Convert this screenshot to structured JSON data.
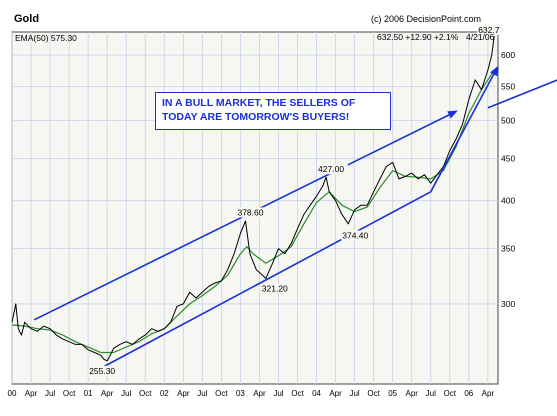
{
  "chart_data": {
    "type": "line",
    "title": "Gold",
    "source": "(c) 2006 DecisionPoint.com",
    "indicator_label": "EMA(50) 575.30",
    "quote_line": "632.50 +12.90 +2.1%",
    "quote_date": "4/21/06",
    "yscale": "log",
    "ylim": [
      240,
      640
    ],
    "y_ticks": [
      300,
      350,
      400,
      450,
      500,
      550,
      600
    ],
    "x_range": [
      0,
      76.6
    ],
    "x_ticks": [
      {
        "label": "00",
        "pos": 0
      },
      {
        "label": "Apr",
        "pos": 3
      },
      {
        "label": "Jul",
        "pos": 6
      },
      {
        "label": "Oct",
        "pos": 9
      },
      {
        "label": "01",
        "pos": 12
      },
      {
        "label": "Apr",
        "pos": 15
      },
      {
        "label": "Jul",
        "pos": 18
      },
      {
        "label": "Oct",
        "pos": 21
      },
      {
        "label": "02",
        "pos": 24
      },
      {
        "label": "Apr",
        "pos": 27
      },
      {
        "label": "Jul",
        "pos": 30
      },
      {
        "label": "Oct",
        "pos": 33
      },
      {
        "label": "03",
        "pos": 36
      },
      {
        "label": "Apr",
        "pos": 39
      },
      {
        "label": "Jul",
        "pos": 42
      },
      {
        "label": "Oct",
        "pos": 45
      },
      {
        "label": "04",
        "pos": 48
      },
      {
        "label": "Apr",
        "pos": 51
      },
      {
        "label": "Jul",
        "pos": 54
      },
      {
        "label": "Oct",
        "pos": 57
      },
      {
        "label": "05",
        "pos": 60
      },
      {
        "label": "Apr",
        "pos": 63
      },
      {
        "label": "Jul",
        "pos": 66
      },
      {
        "label": "Oct",
        "pos": 69
      },
      {
        "label": "06",
        "pos": 72
      },
      {
        "label": "Apr",
        "pos": 75
      }
    ],
    "price_series": [
      [
        0,
        285
      ],
      [
        0.6,
        300
      ],
      [
        1,
        280
      ],
      [
        1.5,
        275
      ],
      [
        2,
        285
      ],
      [
        3,
        280
      ],
      [
        4,
        278
      ],
      [
        5,
        282
      ],
      [
        6,
        280
      ],
      [
        7,
        275
      ],
      [
        8,
        272
      ],
      [
        9,
        270
      ],
      [
        10,
        268
      ],
      [
        11,
        268
      ],
      [
        12,
        264
      ],
      [
        13,
        262
      ],
      [
        14,
        260
      ],
      [
        14.5,
        257
      ],
      [
        15,
        256
      ],
      [
        15.5,
        260
      ],
      [
        16,
        265
      ],
      [
        17,
        268
      ],
      [
        18,
        270
      ],
      [
        19,
        268
      ],
      [
        20,
        272
      ],
      [
        21,
        275
      ],
      [
        22,
        280
      ],
      [
        23,
        278
      ],
      [
        24,
        280
      ],
      [
        25,
        285
      ],
      [
        26,
        298
      ],
      [
        27,
        300
      ],
      [
        28,
        310
      ],
      [
        29,
        305
      ],
      [
        30,
        310
      ],
      [
        31,
        315
      ],
      [
        32,
        318
      ],
      [
        33,
        320
      ],
      [
        34,
        330
      ],
      [
        35,
        345
      ],
      [
        36,
        365
      ],
      [
        36.8,
        378
      ],
      [
        37.5,
        345
      ],
      [
        38.5,
        330
      ],
      [
        39.5,
        325
      ],
      [
        40,
        322
      ],
      [
        41,
        335
      ],
      [
        42,
        350
      ],
      [
        43,
        345
      ],
      [
        44,
        355
      ],
      [
        45,
        370
      ],
      [
        46,
        385
      ],
      [
        47,
        395
      ],
      [
        48,
        405
      ],
      [
        49,
        417
      ],
      [
        49.5,
        427
      ],
      [
        50,
        410
      ],
      [
        51,
        400
      ],
      [
        52,
        385
      ],
      [
        53,
        375
      ],
      [
        54,
        390
      ],
      [
        55,
        395
      ],
      [
        56,
        395
      ],
      [
        57,
        410
      ],
      [
        58,
        425
      ],
      [
        59,
        440
      ],
      [
        60,
        445
      ],
      [
        61,
        425
      ],
      [
        62,
        428
      ],
      [
        63,
        432
      ],
      [
        64,
        425
      ],
      [
        65,
        430
      ],
      [
        66,
        420
      ],
      [
        67,
        430
      ],
      [
        68,
        440
      ],
      [
        69,
        460
      ],
      [
        70,
        475
      ],
      [
        71,
        495
      ],
      [
        72,
        530
      ],
      [
        73,
        560
      ],
      [
        74,
        545
      ],
      [
        75,
        575
      ],
      [
        75.6,
        600
      ],
      [
        76,
        632.5
      ]
    ],
    "ema_series": [
      [
        0,
        283
      ],
      [
        2,
        282
      ],
      [
        4,
        280
      ],
      [
        6,
        279
      ],
      [
        8,
        275
      ],
      [
        10,
        270
      ],
      [
        12,
        266
      ],
      [
        14,
        262
      ],
      [
        16,
        262
      ],
      [
        18,
        266
      ],
      [
        20,
        270
      ],
      [
        22,
        276
      ],
      [
        24,
        280
      ],
      [
        26,
        290
      ],
      [
        28,
        300
      ],
      [
        30,
        307
      ],
      [
        32,
        315
      ],
      [
        34,
        325
      ],
      [
        36,
        345
      ],
      [
        37,
        352
      ],
      [
        38,
        345
      ],
      [
        40,
        336
      ],
      [
        42,
        343
      ],
      [
        44,
        352
      ],
      [
        46,
        375
      ],
      [
        48,
        398
      ],
      [
        50,
        410
      ],
      [
        52,
        395
      ],
      [
        54,
        388
      ],
      [
        56,
        393
      ],
      [
        58,
        415
      ],
      [
        60,
        435
      ],
      [
        62,
        428
      ],
      [
        64,
        427
      ],
      [
        66,
        425
      ],
      [
        68,
        435
      ],
      [
        70,
        465
      ],
      [
        72,
        510
      ],
      [
        74,
        545
      ],
      [
        76,
        575.3
      ]
    ],
    "annotations": [
      {
        "text": "255.30",
        "x": 15,
        "y": 255.3
      },
      {
        "text": "378.60",
        "x": 36.8,
        "y": 378.6
      },
      {
        "text": "321.20",
        "x": 40,
        "y": 321.2
      },
      {
        "text": "427.00",
        "x": 49.5,
        "y": 427
      },
      {
        "text": "374.40",
        "x": 53,
        "y": 374.4
      },
      {
        "text": "632.7",
        "x": 76,
        "y": 632.7
      }
    ],
    "trend_lines": {
      "channel_upper": [
        [
          3.5,
          287
        ],
        [
          70,
          513
        ]
      ],
      "channel_lower": [
        [
          14.5,
          252
        ],
        [
          66,
          410
        ]
      ],
      "breakout": [
        [
          66,
          410
        ],
        [
          76.5,
          580
        ]
      ],
      "projection": [
        [
          75,
          518
        ],
        [
          98,
          610
        ]
      ]
    },
    "callout_lines": [
      "IN A BULL MARKET, THE SELLERS OF",
      "TODAY ARE TOMORROW'S BUYERS!"
    ]
  },
  "colors": {
    "price": "#000000",
    "ema": "#2a8a2a",
    "trend": "#1a2fd6",
    "grid": "#c8d2ea",
    "plot_bg": "#f6f6f2"
  }
}
